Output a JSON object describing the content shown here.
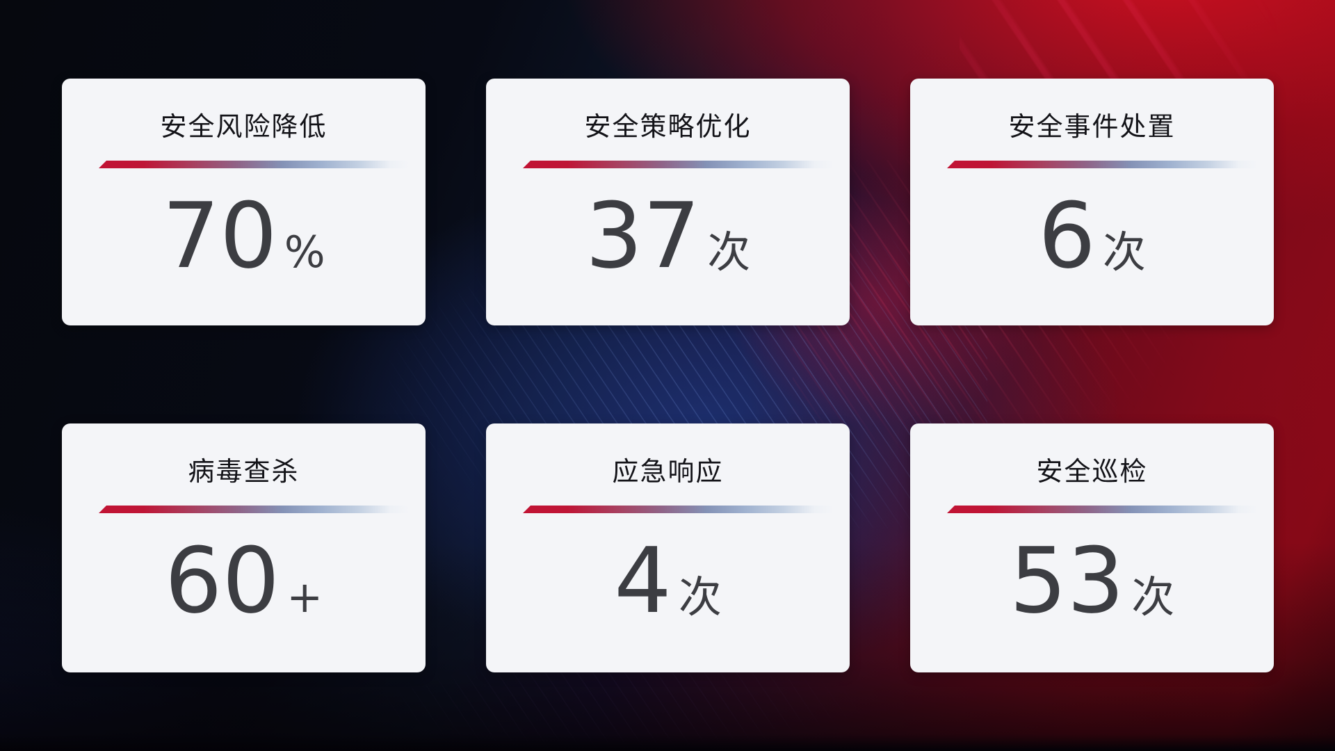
{
  "cards": [
    {
      "id": "risk-reduction",
      "title": "安全风险降低",
      "value": "70",
      "unit": "%"
    },
    {
      "id": "policy-optimization",
      "title": "安全策略优化",
      "value": "37",
      "unit": "次"
    },
    {
      "id": "incident-handling",
      "title": "安全事件处置",
      "value": "6",
      "unit": "次"
    },
    {
      "id": "virus-scan",
      "title": "病毒查杀",
      "value": "60",
      "unit": "+"
    },
    {
      "id": "emergency-response",
      "title": "应急响应",
      "value": "4",
      "unit": "次"
    },
    {
      "id": "security-inspection",
      "title": "安全巡检",
      "value": "53",
      "unit": "次"
    }
  ],
  "theme": {
    "card_background": "#f4f5f8",
    "title_color": "#131318",
    "value_color": "#3c3d42",
    "divider_red": "#c11334",
    "divider_steel_blue": "#8492b6",
    "background_dark_navy": "#0d1426",
    "background_blue_glow": "#1c3070",
    "background_bright_red": "#c00d1f",
    "background_dark_maroon": "#2e0a10"
  }
}
